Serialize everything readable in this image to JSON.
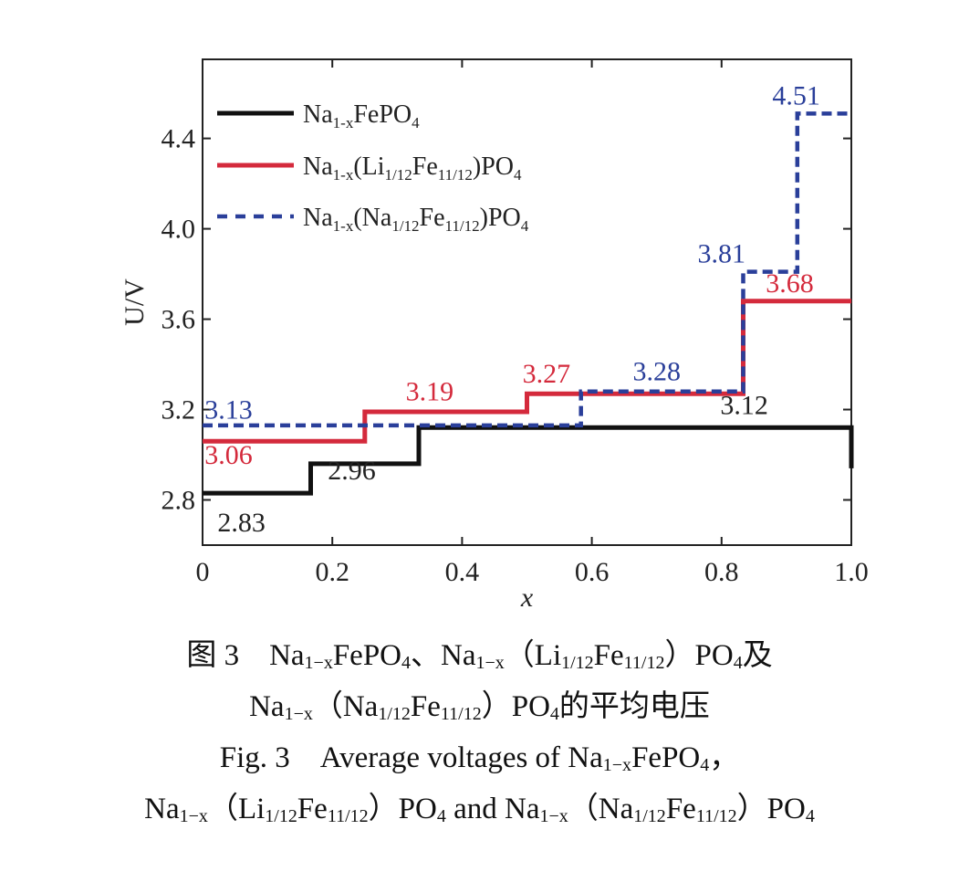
{
  "chart_data": {
    "type": "line",
    "step": true,
    "xlabel": "x",
    "ylabel": "U/V",
    "xlim": [
      0,
      1.0
    ],
    "ylim": [
      2.6,
      4.75
    ],
    "xticks": [
      "0",
      "0.2",
      "0.4",
      "0.6",
      "0.8",
      "1.0"
    ],
    "xtick_values": [
      0,
      0.2,
      0.4,
      0.6,
      0.8,
      1.0
    ],
    "yticks": [
      "2.8",
      "3.2",
      "3.6",
      "4.0",
      "4.4"
    ],
    "ytick_values": [
      2.8,
      3.2,
      3.6,
      4.0,
      4.4
    ],
    "legend_position": "top-left",
    "grid": false,
    "series": [
      {
        "name_parts": [
          [
            "Na",
            "n"
          ],
          [
            "1-x",
            "sub"
          ],
          [
            "FePO",
            "n"
          ],
          [
            "4",
            "sub"
          ]
        ],
        "color": "#111111",
        "dash": false,
        "segments": [
          {
            "x0": 0,
            "x1": 0.1667,
            "y": 2.83
          },
          {
            "x0": 0.1667,
            "x1": 0.3333,
            "y": 2.96
          },
          {
            "x0": 0.3333,
            "x1": 1.0,
            "y": 3.12
          }
        ],
        "end_drop_to": 2.94,
        "labels": [
          {
            "text": "2.83",
            "x": 0.06,
            "y": 2.66
          },
          {
            "text": "2.96",
            "x": 0.23,
            "y": 2.89
          },
          {
            "text": "3.12",
            "x": 0.835,
            "y": 3.18
          }
        ]
      },
      {
        "name_parts": [
          [
            "Na",
            "n"
          ],
          [
            "1-x",
            "sub"
          ],
          [
            "(Li",
            "n"
          ],
          [
            "1/12",
            "sub"
          ],
          [
            "Fe",
            "n"
          ],
          [
            "11/12",
            "sub"
          ],
          [
            ")PO",
            "n"
          ],
          [
            "4",
            "sub"
          ]
        ],
        "color": "#d42a3c",
        "dash": false,
        "segments": [
          {
            "x0": 0,
            "x1": 0.25,
            "y": 3.06
          },
          {
            "x0": 0.25,
            "x1": 0.5,
            "y": 3.19
          },
          {
            "x0": 0.5,
            "x1": 0.8333,
            "y": 3.27
          },
          {
            "x0": 0.8333,
            "x1": 1.0,
            "y": 3.68
          }
        ],
        "labels": [
          {
            "text": "3.06",
            "x": 0.04,
            "y": 2.96
          },
          {
            "text": "3.19",
            "x": 0.35,
            "y": 3.24
          },
          {
            "text": "3.27",
            "x": 0.53,
            "y": 3.32
          },
          {
            "text": "3.68",
            "x": 0.905,
            "y": 3.72
          }
        ]
      },
      {
        "name_parts": [
          [
            "Na",
            "n"
          ],
          [
            "1-x",
            "sub"
          ],
          [
            "(Na",
            "n"
          ],
          [
            "1/12",
            "sub"
          ],
          [
            "Fe",
            "n"
          ],
          [
            "11/12",
            "sub"
          ],
          [
            ")PO",
            "n"
          ],
          [
            "4",
            "sub"
          ]
        ],
        "color": "#2a3f9a",
        "dash": true,
        "segments": [
          {
            "x0": 0,
            "x1": 0.5833,
            "y": 3.13
          },
          {
            "x0": 0.5833,
            "x1": 0.8333,
            "y": 3.28
          },
          {
            "x0": 0.8333,
            "x1": 0.9167,
            "y": 3.81
          },
          {
            "x0": 0.9167,
            "x1": 1.0,
            "y": 4.51
          }
        ],
        "labels": [
          {
            "text": "3.13",
            "x": 0.04,
            "y": 3.16
          },
          {
            "text": "3.28",
            "x": 0.7,
            "y": 3.33
          },
          {
            "text": "3.81",
            "x": 0.8,
            "y": 3.85
          },
          {
            "text": "4.51",
            "x": 0.915,
            "y": 4.55
          }
        ]
      }
    ]
  },
  "caption": {
    "lines": [
      [
        [
          "图 3　Na",
          "n"
        ],
        [
          "1−x",
          "sub"
        ],
        [
          "FePO",
          "n"
        ],
        [
          "4",
          "sub"
        ],
        [
          "、Na",
          "n"
        ],
        [
          "1−x",
          "sub"
        ],
        [
          "（Li",
          "n"
        ],
        [
          "1/12",
          "sub"
        ],
        [
          "Fe",
          "n"
        ],
        [
          "11/12",
          "sub"
        ],
        [
          "）PO",
          "n"
        ],
        [
          "4",
          "sub"
        ],
        [
          "及",
          "n"
        ]
      ],
      [
        [
          "Na",
          "n"
        ],
        [
          "1−x",
          "sub"
        ],
        [
          "（Na",
          "n"
        ],
        [
          "1/12",
          "sub"
        ],
        [
          "Fe",
          "n"
        ],
        [
          "11/12",
          "sub"
        ],
        [
          "）PO",
          "n"
        ],
        [
          "4",
          "sub"
        ],
        [
          "的平均电压",
          "n"
        ]
      ],
      [
        [
          "Fig. 3　Average voltages of Na",
          "n"
        ],
        [
          "1−x",
          "sub"
        ],
        [
          "FePO",
          "n"
        ],
        [
          "4",
          "sub"
        ],
        [
          "，",
          "n"
        ]
      ],
      [
        [
          "Na",
          "n"
        ],
        [
          "1−x",
          "sub"
        ],
        [
          "（Li",
          "n"
        ],
        [
          "1/12",
          "sub"
        ],
        [
          "Fe",
          "n"
        ],
        [
          "11/12",
          "sub"
        ],
        [
          "）PO",
          "n"
        ],
        [
          "4",
          "sub"
        ],
        [
          " and Na",
          "n"
        ],
        [
          "1−x",
          "sub"
        ],
        [
          "（Na",
          "n"
        ],
        [
          "1/12",
          "sub"
        ],
        [
          "Fe",
          "n"
        ],
        [
          "11/12",
          "sub"
        ],
        [
          "）PO",
          "n"
        ],
        [
          "4",
          "sub"
        ]
      ]
    ]
  }
}
